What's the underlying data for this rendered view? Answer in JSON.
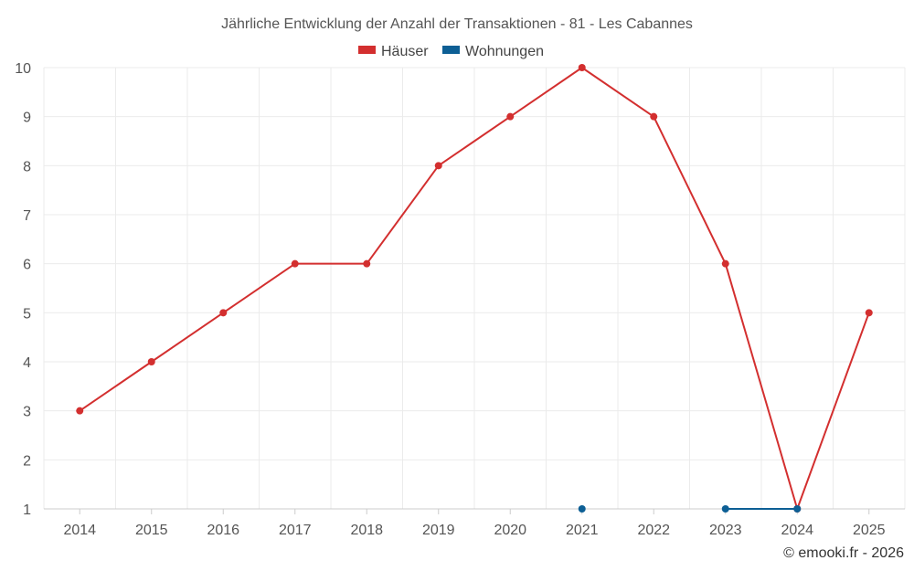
{
  "chart_data": {
    "type": "line",
    "title": "Jährliche Entwicklung der Anzahl der Transaktionen - 81 - Les Cabannes",
    "categories": [
      "2014",
      "2015",
      "2016",
      "2017",
      "2018",
      "2019",
      "2020",
      "2021",
      "2022",
      "2023",
      "2024",
      "2025"
    ],
    "series": [
      {
        "name": "Häuser",
        "color": "#d32f2f",
        "values": [
          3,
          4,
          5,
          6,
          6,
          8,
          9,
          10,
          9,
          6,
          1,
          5
        ]
      },
      {
        "name": "Wohnungen",
        "color": "#0d5f95",
        "values": [
          null,
          null,
          null,
          null,
          null,
          null,
          null,
          1,
          null,
          1,
          1,
          null
        ]
      }
    ],
    "yticks": [
      "1",
      "2",
      "3",
      "4",
      "5",
      "6",
      "7",
      "8",
      "9",
      "10"
    ],
    "ylim": [
      1,
      10
    ],
    "grid": true,
    "legend": "top-center",
    "credit": "© emooki.fr - 2026"
  }
}
